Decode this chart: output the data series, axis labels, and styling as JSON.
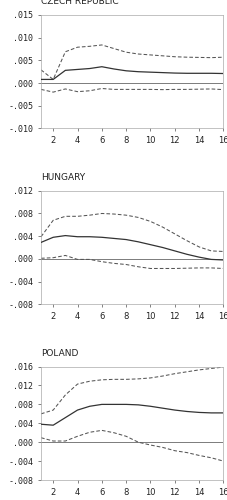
{
  "panels": [
    {
      "title": "CZECH REPUBLIC",
      "ylim": [
        -0.01,
        0.015
      ],
      "yticks": [
        -0.01,
        -0.005,
        0.0,
        0.005,
        0.01,
        0.015
      ],
      "ytick_labels": [
        "-.010",
        "-.005",
        ".000",
        ".005",
        ".010",
        ".015"
      ],
      "x": [
        1,
        2,
        3,
        4,
        5,
        6,
        7,
        8,
        9,
        10,
        11,
        12,
        13,
        14,
        15,
        16
      ],
      "irf": [
        0.0008,
        0.0008,
        0.0028,
        0.003,
        0.0032,
        0.0036,
        0.0031,
        0.0027,
        0.0025,
        0.0024,
        0.0023,
        0.0022,
        0.00215,
        0.00215,
        0.00215,
        0.0021
      ],
      "upper": [
        0.0029,
        0.0008,
        0.0069,
        0.0079,
        0.0081,
        0.0084,
        0.0076,
        0.0068,
        0.0064,
        0.0062,
        0.006,
        0.0058,
        0.0057,
        0.00565,
        0.0056,
        0.0057
      ],
      "lower": [
        -0.0014,
        -0.002,
        -0.0013,
        -0.0019,
        -0.0017,
        -0.0012,
        -0.0014,
        -0.0014,
        -0.0014,
        -0.0014,
        -0.00145,
        -0.0014,
        -0.0014,
        -0.00135,
        -0.0013,
        -0.00145
      ]
    },
    {
      "title": "HUNGARY",
      "ylim": [
        -0.008,
        0.012
      ],
      "yticks": [
        -0.008,
        -0.004,
        0.0,
        0.004,
        0.008,
        0.012
      ],
      "ytick_labels": [
        "-.008",
        "-.004",
        ".000",
        ".004",
        ".008",
        ".012"
      ],
      "x": [
        1,
        2,
        3,
        4,
        5,
        6,
        7,
        8,
        9,
        10,
        11,
        12,
        13,
        14,
        15,
        16
      ],
      "irf": [
        0.0029,
        0.0038,
        0.0041,
        0.0039,
        0.0039,
        0.0038,
        0.0036,
        0.0034,
        0.003,
        0.0025,
        0.002,
        0.0014,
        0.0008,
        0.0003,
        -0.0001,
        -0.0002
      ],
      "upper": [
        0.0039,
        0.0068,
        0.0075,
        0.0075,
        0.0077,
        0.008,
        0.0079,
        0.0077,
        0.0073,
        0.0066,
        0.0056,
        0.0044,
        0.0032,
        0.0021,
        0.0014,
        0.0013
      ],
      "lower": [
        0.0001,
        0.0002,
        0.0006,
        -0.0001,
        -0.0001,
        -0.0005,
        -0.0008,
        -0.001,
        -0.0014,
        -0.0017,
        -0.0017,
        -0.0017,
        -0.00165,
        -0.0016,
        -0.0016,
        -0.0017
      ]
    },
    {
      "title": "POLAND",
      "ylim": [
        -0.008,
        0.016
      ],
      "yticks": [
        -0.008,
        -0.004,
        0.0,
        0.004,
        0.008,
        0.012,
        0.016
      ],
      "ytick_labels": [
        "-.008",
        "-.004",
        ".000",
        ".004",
        ".008",
        ".012",
        ".016"
      ],
      "x": [
        1,
        2,
        3,
        4,
        5,
        6,
        7,
        8,
        9,
        10,
        11,
        12,
        13,
        14,
        15,
        16
      ],
      "irf": [
        0.0038,
        0.0036,
        0.0052,
        0.0068,
        0.0076,
        0.008,
        0.008,
        0.008,
        0.0079,
        0.0076,
        0.0072,
        0.0068,
        0.0065,
        0.0063,
        0.0062,
        0.0062
      ],
      "upper": [
        0.006,
        0.0068,
        0.01,
        0.0123,
        0.0129,
        0.0132,
        0.0133,
        0.0133,
        0.0134,
        0.0136,
        0.014,
        0.0145,
        0.0149,
        0.0153,
        0.0156,
        0.0159
      ],
      "lower": [
        0.00095,
        0.00025,
        0.00025,
        0.00125,
        0.0021,
        0.0025,
        0.002,
        0.00125,
        0.0,
        -0.0006,
        -0.0011,
        -0.0018,
        -0.0022,
        -0.0028,
        -0.0033,
        -0.004
      ]
    }
  ],
  "xticks": [
    2,
    4,
    6,
    8,
    10,
    12,
    14,
    16
  ],
  "line_color": "#333333",
  "dash_color": "#555555",
  "zero_line_color": "#666666",
  "bg_color": "#ffffff",
  "fig_bg": "#ffffff",
  "title_fontsize": 6.5,
  "tick_fontsize": 6.0,
  "label_color": "#222222"
}
